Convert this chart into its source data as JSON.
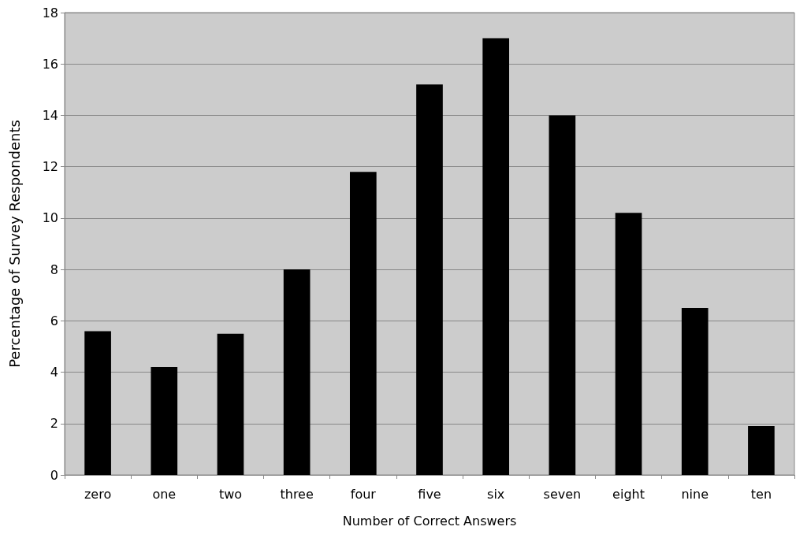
{
  "chart_data": {
    "type": "bar",
    "xlabel": "Number of Correct Answers",
    "ylabel": "Percentage of Survey Respondents",
    "categories": [
      "zero",
      "one",
      "two",
      "three",
      "four",
      "five",
      "six",
      "seven",
      "eight",
      "nine",
      "ten"
    ],
    "values": [
      5.6,
      4.2,
      5.5,
      8.0,
      11.8,
      15.2,
      17.0,
      14.0,
      10.2,
      6.5,
      1.9
    ],
    "color": "#000000",
    "ylim": [
      0,
      18
    ],
    "yticks": [
      0,
      2,
      4,
      6,
      8,
      10,
      12,
      14,
      16,
      18
    ],
    "grid": "y"
  }
}
